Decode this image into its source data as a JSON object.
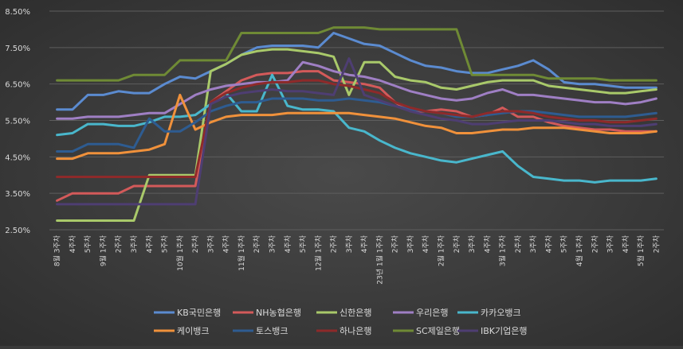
{
  "chart_data": {
    "type": "line",
    "title": "",
    "xlabel": "",
    "ylabel": "",
    "ylim": [
      2.5,
      8.5
    ],
    "yticks": [
      "2.50%",
      "3.50%",
      "4.50%",
      "5.50%",
      "6.50%",
      "7.50%",
      "8.50%"
    ],
    "grid": "horizontal",
    "legend_position": "bottom",
    "x_tick_labels": [
      "8월 3주차",
      "4주차",
      "5주차",
      "9월 1주차",
      "2주차",
      "3주차",
      "4주차",
      "5주차",
      "10월 1주차",
      "2주차",
      "3주차",
      "4주차",
      "11월 1주차",
      "2주차",
      "3주차",
      "4주차",
      "5주차",
      "12월 1주차",
      "2주차",
      "3주차",
      "4주차",
      "23년 1월 1주차",
      "2주차",
      "3주차",
      "4주차",
      "2월 1주차",
      "2주차",
      "3주차",
      "4주차",
      "3월 1주차",
      "2주차",
      "3주차",
      "4주차",
      "5주차",
      "4월 1주차",
      "2주차",
      "3주차",
      "4주차",
      "5월 1주차",
      "2주차"
    ],
    "series": [
      {
        "name": "KB국민은행",
        "color": "#5b8bd0",
        "values": [
          5.8,
          5.8,
          6.2,
          6.2,
          6.3,
          6.25,
          6.25,
          6.5,
          6.7,
          6.65,
          6.85,
          7.05,
          7.3,
          7.5,
          7.55,
          7.55,
          7.55,
          7.5,
          7.9,
          7.75,
          7.6,
          7.55,
          7.35,
          7.15,
          7.0,
          6.95,
          6.85,
          6.8,
          6.8,
          6.9,
          7.0,
          7.15,
          6.9,
          6.55,
          6.5,
          6.5,
          6.45,
          6.4,
          6.4,
          6.4
        ]
      },
      {
        "name": "NH농협은행",
        "color": "#d35a5a",
        "values": [
          3.3,
          3.5,
          3.5,
          3.5,
          3.5,
          3.7,
          3.7,
          3.7,
          3.7,
          3.7,
          6.0,
          6.3,
          6.6,
          6.75,
          6.8,
          6.8,
          6.85,
          6.85,
          6.6,
          6.55,
          6.5,
          6.4,
          6.0,
          5.75,
          5.75,
          5.8,
          5.75,
          5.6,
          5.65,
          5.85,
          5.6,
          5.6,
          5.45,
          5.35,
          5.3,
          5.25,
          5.25,
          5.2,
          5.2,
          5.2
        ]
      },
      {
        "name": "신한은행",
        "color": "#a9c96a",
        "values": [
          2.75,
          2.75,
          2.75,
          2.75,
          2.75,
          2.75,
          4.0,
          4.0,
          4.0,
          4.0,
          6.85,
          7.05,
          7.3,
          7.4,
          7.45,
          7.45,
          7.4,
          7.35,
          7.25,
          6.2,
          7.1,
          7.1,
          6.7,
          6.6,
          6.55,
          6.4,
          6.35,
          6.45,
          6.55,
          6.6,
          6.6,
          6.6,
          6.45,
          6.4,
          6.35,
          6.3,
          6.25,
          6.25,
          6.3,
          6.35
        ]
      },
      {
        "name": "우리은행",
        "color": "#9f7fc4",
        "values": [
          5.55,
          5.55,
          5.6,
          5.6,
          5.6,
          5.65,
          5.7,
          5.7,
          5.95,
          6.2,
          6.35,
          6.45,
          6.5,
          6.55,
          6.55,
          6.6,
          7.1,
          7.0,
          6.85,
          6.75,
          6.7,
          6.6,
          6.45,
          6.3,
          6.2,
          6.1,
          6.05,
          6.1,
          6.25,
          6.35,
          6.2,
          6.2,
          6.15,
          6.1,
          6.05,
          6.0,
          6.0,
          5.95,
          6.0,
          6.1
        ]
      },
      {
        "name": "카카오뱅크",
        "color": "#49b7cc",
        "values": [
          5.1,
          5.15,
          5.4,
          5.4,
          5.35,
          5.35,
          5.45,
          5.6,
          5.6,
          5.65,
          5.95,
          6.25,
          5.75,
          5.75,
          6.75,
          5.9,
          5.8,
          5.8,
          5.75,
          5.3,
          5.2,
          4.95,
          4.75,
          4.6,
          4.5,
          4.4,
          4.35,
          4.45,
          4.55,
          4.65,
          4.25,
          3.95,
          3.9,
          3.85,
          3.85,
          3.8,
          3.85,
          3.85,
          3.85,
          3.9
        ]
      },
      {
        "name": "케이뱅크",
        "color": "#f0913b",
        "values": [
          4.45,
          4.45,
          4.6,
          4.6,
          4.6,
          4.65,
          4.7,
          4.85,
          6.2,
          5.25,
          5.45,
          5.6,
          5.65,
          5.65,
          5.65,
          5.7,
          5.7,
          5.7,
          5.7,
          5.7,
          5.65,
          5.6,
          5.55,
          5.45,
          5.35,
          5.3,
          5.15,
          5.15,
          5.2,
          5.25,
          5.25,
          5.3,
          5.3,
          5.3,
          5.25,
          5.2,
          5.15,
          5.15,
          5.15,
          5.2
        ]
      },
      {
        "name": "토스뱅크",
        "color": "#2e5c91",
        "values": [
          4.65,
          4.65,
          4.85,
          4.85,
          4.85,
          4.75,
          5.55,
          5.2,
          5.2,
          5.45,
          5.75,
          5.9,
          6.0,
          6.0,
          6.1,
          6.1,
          6.1,
          6.05,
          6.05,
          6.1,
          6.05,
          6.0,
          5.9,
          5.8,
          5.75,
          5.7,
          5.6,
          5.6,
          5.65,
          5.7,
          5.75,
          5.75,
          5.7,
          5.65,
          5.6,
          5.6,
          5.6,
          5.6,
          5.65,
          5.7
        ]
      },
      {
        "name": "하나은행",
        "color": "#8e2a2a",
        "values": [
          3.95,
          3.95,
          3.95,
          3.95,
          3.95,
          3.95,
          3.95,
          3.95,
          3.95,
          3.95,
          6.0,
          6.25,
          6.4,
          6.5,
          6.55,
          6.55,
          6.6,
          6.6,
          6.5,
          6.45,
          6.35,
          6.25,
          6.0,
          5.85,
          5.75,
          5.7,
          5.65,
          5.6,
          5.7,
          5.75,
          5.75,
          5.7,
          5.6,
          5.55,
          5.5,
          5.5,
          5.45,
          5.45,
          5.5,
          5.55
        ]
      },
      {
        "name": "SC제일은행",
        "color": "#6f8a35",
        "values": [
          6.6,
          6.6,
          6.6,
          6.6,
          6.6,
          6.75,
          6.75,
          6.75,
          7.15,
          7.15,
          7.15,
          7.15,
          7.9,
          7.9,
          7.9,
          7.9,
          7.9,
          7.9,
          8.05,
          8.05,
          8.05,
          8.0,
          8.0,
          8.0,
          8.0,
          8.0,
          8.0,
          6.75,
          6.75,
          6.75,
          6.75,
          6.75,
          6.65,
          6.65,
          6.65,
          6.65,
          6.6,
          6.6,
          6.6,
          6.6
        ]
      },
      {
        "name": "IBK기업은행",
        "color": "#4e3e72",
        "values": [
          3.2,
          3.2,
          3.2,
          3.2,
          3.2,
          3.2,
          3.2,
          3.2,
          3.2,
          3.2,
          5.95,
          6.15,
          6.25,
          6.3,
          6.35,
          6.3,
          6.3,
          6.25,
          6.2,
          7.2,
          6.2,
          6.05,
          5.9,
          5.75,
          5.65,
          5.55,
          5.5,
          5.4,
          5.4,
          5.45,
          5.5,
          5.5,
          5.5,
          5.45,
          5.4,
          5.4,
          5.35,
          5.35,
          5.35,
          5.4
        ]
      }
    ]
  }
}
